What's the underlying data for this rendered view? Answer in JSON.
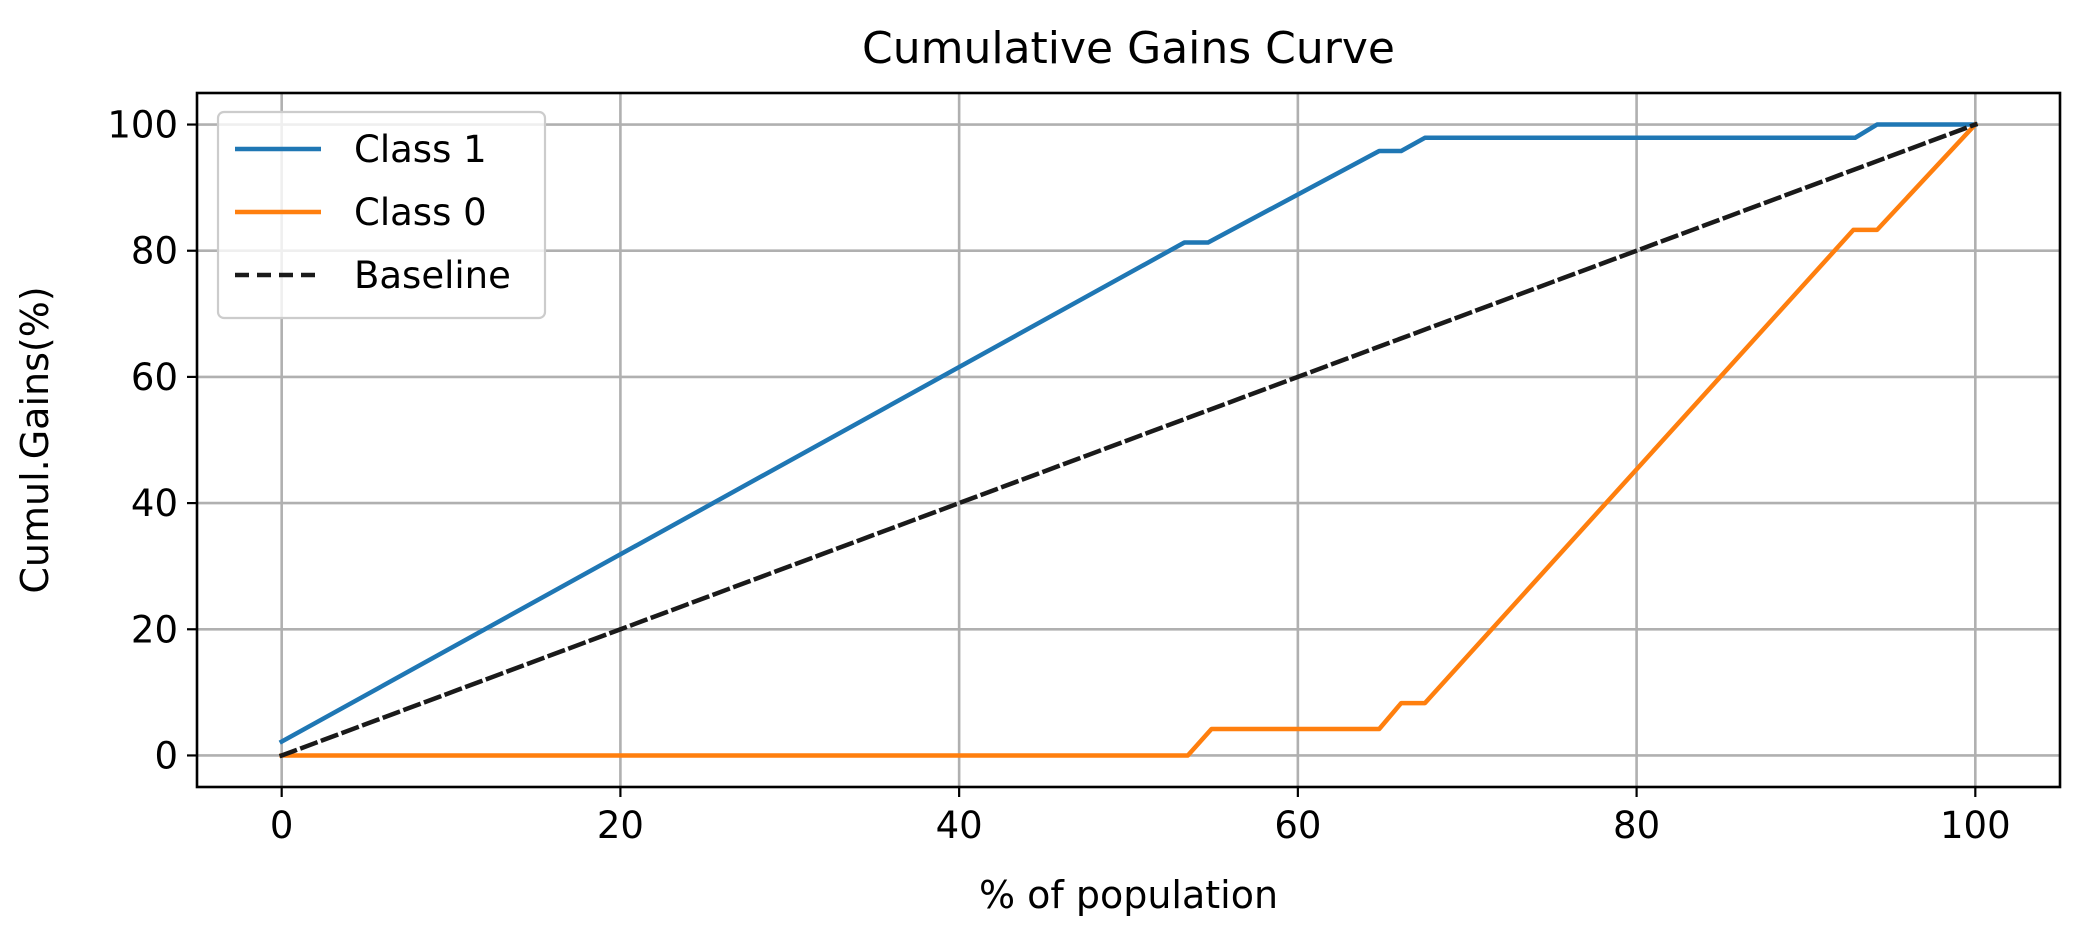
{
  "chart_data": {
    "type": "line",
    "title": "Cumulative Gains Curve",
    "xlabel": "% of population",
    "ylabel": "Cumul.Gains(%)",
    "xlim": [
      -5,
      105
    ],
    "ylim": [
      -5,
      105
    ],
    "xticks": [
      0,
      20,
      40,
      60,
      80,
      100
    ],
    "yticks": [
      0,
      20,
      40,
      60,
      80,
      100
    ],
    "grid": true,
    "legend_position": "top-left",
    "series": [
      {
        "name": "Class 1",
        "color": "#1f77b4",
        "style": "solid",
        "x": [
          0,
          53.3,
          54.7,
          64.8,
          66.1,
          67.5,
          92.9,
          94.2,
          100
        ],
        "y": [
          2.2,
          81.3,
          81.3,
          95.8,
          95.8,
          97.9,
          97.9,
          100,
          100
        ]
      },
      {
        "name": "Class 0",
        "color": "#ff7f0e",
        "style": "solid",
        "x": [
          0,
          53.5,
          54.9,
          64.8,
          66.1,
          67.5,
          92.8,
          94.2,
          100
        ],
        "y": [
          0,
          0,
          4.2,
          4.2,
          8.3,
          8.3,
          83.3,
          83.3,
          100
        ]
      },
      {
        "name": "Baseline",
        "color": "#1a1a1a",
        "style": "dashed",
        "x": [
          0,
          100
        ],
        "y": [
          0,
          100
        ]
      }
    ]
  }
}
